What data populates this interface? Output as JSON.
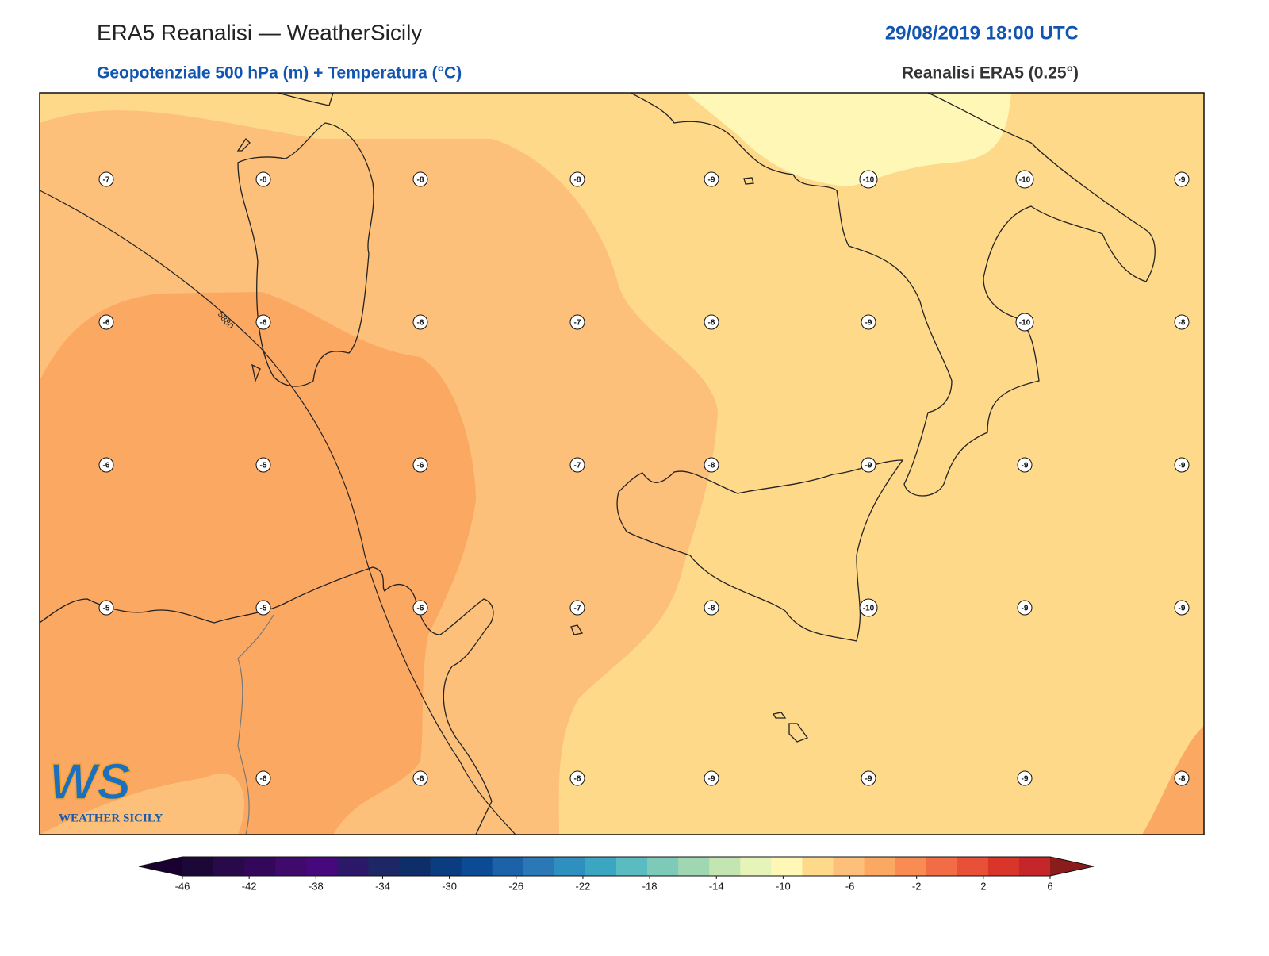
{
  "header": {
    "title": "ERA5 Reanalisi — WeatherSicily",
    "datetime": "29/08/2019 18:00 UTC",
    "subtitle": "Geopotenziale 500 hPa (m) + Temperatura (°C)",
    "source": "Reanalisi ERA5 (0.25°)"
  },
  "map": {
    "contour_label": "5880",
    "temperatures": [
      [
        -7,
        -8,
        -8,
        -8,
        -9,
        -10,
        -10,
        -9
      ],
      [
        -6,
        -6,
        -6,
        -7,
        -8,
        -9,
        -10,
        -8
      ],
      [
        -6,
        -5,
        -6,
        -7,
        -8,
        -9,
        -9,
        -9
      ],
      [
        -5,
        -5,
        -6,
        -7,
        -8,
        -10,
        -9,
        -9
      ],
      [
        null,
        -6,
        -6,
        -8,
        -9,
        -9,
        -9,
        -8
      ]
    ]
  },
  "logo": {
    "mark": "WS",
    "text": "WEATHER SICILY"
  },
  "colorbar": {
    "ticks": [
      -46,
      -42,
      -38,
      -34,
      -30,
      -26,
      -22,
      -18,
      -14,
      -10,
      -6,
      -2,
      2,
      6
    ],
    "colors": [
      "#1c0836",
      "#280a4a",
      "#33075a",
      "#3f0a6c",
      "#46087c",
      "#2c1868",
      "#1e2766",
      "#0d2e68",
      "#0b3c80",
      "#0b4b96",
      "#1c62a8",
      "#2a78b6",
      "#2f8fbe",
      "#3aa6c2",
      "#5abcc0",
      "#7ecab9",
      "#a0d7b3",
      "#c3e5b1",
      "#e6f4b9",
      "#fff7b5",
      "#fed98a",
      "#fdc07a",
      "#fba862",
      "#f88c52",
      "#f26c45",
      "#e85038",
      "#d93528",
      "#c4262a"
    ],
    "under": "#1a0030",
    "over": "#8b1c1c"
  }
}
